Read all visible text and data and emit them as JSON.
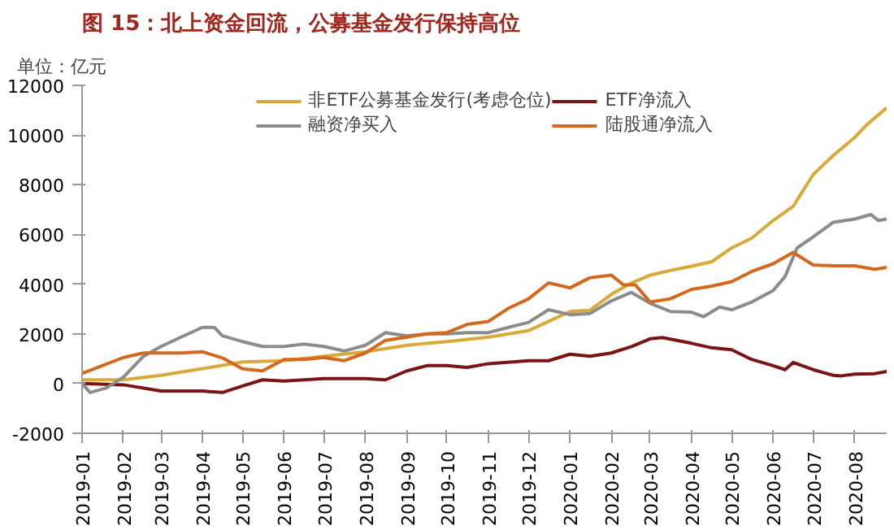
{
  "chart_data": {
    "type": "line",
    "title": "图 15：北上资金回流，公募基金发行保持高位",
    "ylabel": "单位：亿元",
    "xlim": [
      "2019-01-01",
      "2020-08-25"
    ],
    "xticks": [
      "2019-01",
      "2019-02",
      "2019-03",
      "2019-04",
      "2019-05",
      "2019-06",
      "2019-07",
      "2019-08",
      "2019-09",
      "2019-10",
      "2019-11",
      "2019-12",
      "2020-01",
      "2020-02",
      "2020-03",
      "2020-04",
      "2020-05",
      "2020-06",
      "2020-07",
      "2020-08"
    ],
    "ylim": [
      -2000,
      12000
    ],
    "yticks": [
      -2000,
      0,
      2000,
      4000,
      6000,
      8000,
      10000,
      12000
    ],
    "grid": false,
    "legend": "top",
    "line_style": "solid",
    "marker": "none",
    "series": [
      {
        "name": "非ETF公募基金发行(考虑仓位)",
        "color": "#d9a93a",
        "x": [
          "2019-01-01",
          "2019-02-01",
          "2019-03-01",
          "2019-04-01",
          "2019-05-01",
          "2019-06-01",
          "2019-07-01",
          "2019-08-01",
          "2019-09-01",
          "2019-10-01",
          "2019-11-01",
          "2019-12-01",
          "2019-12-16",
          "2020-01-01",
          "2020-01-16",
          "2020-02-01",
          "2020-02-16",
          "2020-03-01",
          "2020-03-16",
          "2020-04-01",
          "2020-04-16",
          "2020-05-01",
          "2020-05-16",
          "2020-06-01",
          "2020-06-16",
          "2020-07-01",
          "2020-07-16",
          "2020-08-01",
          "2020-08-10",
          "2020-08-25"
        ],
        "values": [
          150,
          150,
          330,
          600,
          870,
          920,
          1100,
          1280,
          1540,
          1690,
          1870,
          2130,
          2500,
          2900,
          2950,
          3590,
          4050,
          4360,
          4550,
          4720,
          4900,
          5460,
          5850,
          6560,
          7130,
          8410,
          9180,
          9900,
          10410,
          11100
        ]
      },
      {
        "name": "ETF净流入",
        "color": "#7b1416",
        "x": [
          "2019-01-01",
          "2019-02-01",
          "2019-03-01",
          "2019-04-01",
          "2019-04-16",
          "2019-05-01",
          "2019-05-16",
          "2019-06-01",
          "2019-07-01",
          "2019-08-01",
          "2019-08-16",
          "2019-09-01",
          "2019-09-16",
          "2019-10-01",
          "2019-10-16",
          "2019-11-01",
          "2019-12-01",
          "2019-12-16",
          "2020-01-01",
          "2020-01-16",
          "2020-02-01",
          "2020-02-16",
          "2020-03-01",
          "2020-03-10",
          "2020-04-01",
          "2020-04-16",
          "2020-05-01",
          "2020-05-16",
          "2020-06-01",
          "2020-06-10",
          "2020-06-16",
          "2020-07-01",
          "2020-07-16",
          "2020-07-22",
          "2020-08-01",
          "2020-08-16",
          "2020-08-25"
        ],
        "values": [
          0,
          -50,
          -300,
          -300,
          -360,
          -100,
          150,
          100,
          200,
          200,
          150,
          510,
          720,
          720,
          650,
          800,
          920,
          920,
          1180,
          1100,
          1230,
          1490,
          1800,
          1850,
          1620,
          1440,
          1360,
          970,
          720,
          560,
          850,
          560,
          330,
          310,
          380,
          400,
          490
        ]
      },
      {
        "name": "融资净买入",
        "color": "#8c8c8c",
        "x": [
          "2019-01-01",
          "2019-01-07",
          "2019-01-19",
          "2019-02-01",
          "2019-02-16",
          "2019-03-01",
          "2019-03-16",
          "2019-04-01",
          "2019-04-10",
          "2019-04-16",
          "2019-05-01",
          "2019-05-16",
          "2019-06-01",
          "2019-06-16",
          "2019-07-01",
          "2019-07-16",
          "2019-08-01",
          "2019-08-16",
          "2019-09-01",
          "2019-09-16",
          "2019-10-01",
          "2019-10-16",
          "2019-11-01",
          "2019-11-16",
          "2019-12-01",
          "2019-12-16",
          "2020-01-01",
          "2020-01-16",
          "2020-02-01",
          "2020-02-16",
          "2020-03-01",
          "2020-03-16",
          "2020-04-01",
          "2020-04-10",
          "2020-04-22",
          "2020-05-01",
          "2020-05-16",
          "2020-06-01",
          "2020-06-10",
          "2020-06-19",
          "2020-07-01",
          "2020-07-16",
          "2020-08-01",
          "2020-08-13",
          "2020-08-19",
          "2020-08-25"
        ],
        "values": [
          0,
          -360,
          -180,
          260,
          1100,
          1490,
          1870,
          2260,
          2260,
          1920,
          1690,
          1490,
          1490,
          1590,
          1490,
          1310,
          1540,
          2050,
          1920,
          2000,
          2000,
          2050,
          2050,
          2260,
          2460,
          2970,
          2770,
          2820,
          3330,
          3670,
          3230,
          2900,
          2870,
          2690,
          3080,
          2970,
          3280,
          3740,
          4310,
          5460,
          5900,
          6490,
          6620,
          6800,
          6560,
          6620
        ]
      },
      {
        "name": "陆股通净流入",
        "color": "#d4691e",
        "x": [
          "2019-01-01",
          "2019-01-16",
          "2019-02-01",
          "2019-02-16",
          "2019-03-01",
          "2019-03-16",
          "2019-04-01",
          "2019-04-16",
          "2019-05-01",
          "2019-05-16",
          "2019-06-01",
          "2019-06-16",
          "2019-07-01",
          "2019-07-16",
          "2019-08-01",
          "2019-08-16",
          "2019-09-01",
          "2019-09-16",
          "2019-10-01",
          "2019-10-16",
          "2019-11-01",
          "2019-11-16",
          "2019-12-01",
          "2019-12-16",
          "2020-01-01",
          "2020-01-16",
          "2020-02-01",
          "2020-02-10",
          "2020-02-19",
          "2020-03-01",
          "2020-03-16",
          "2020-04-01",
          "2020-04-16",
          "2020-05-01",
          "2020-05-16",
          "2020-06-01",
          "2020-06-16",
          "2020-07-01",
          "2020-07-16",
          "2020-08-01",
          "2020-08-16",
          "2020-08-25"
        ],
        "values": [
          410,
          720,
          1050,
          1230,
          1230,
          1230,
          1280,
          1030,
          590,
          510,
          970,
          970,
          1050,
          920,
          1230,
          1740,
          1870,
          2000,
          2050,
          2380,
          2500,
          3030,
          3410,
          4050,
          3850,
          4260,
          4360,
          3970,
          3970,
          3280,
          3410,
          3790,
          3920,
          4100,
          4510,
          4820,
          5280,
          4770,
          4740,
          4740,
          4600,
          4670
        ]
      }
    ]
  }
}
